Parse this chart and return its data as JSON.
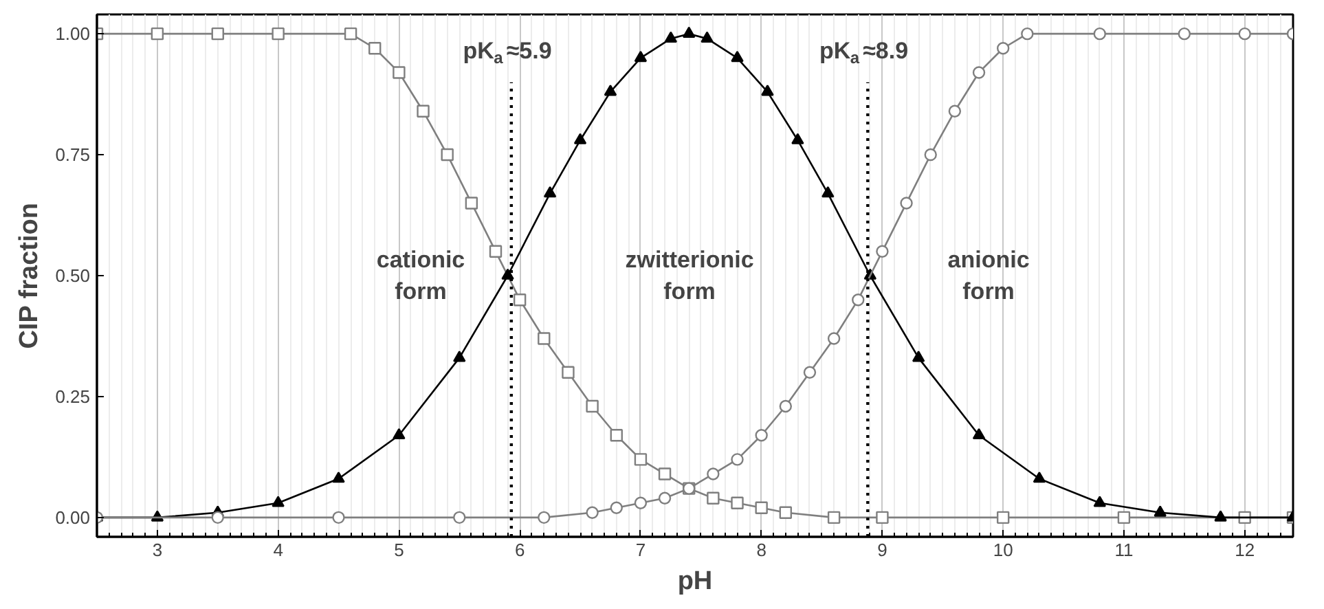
{
  "chart_data": {
    "type": "line",
    "xlabel": "pH",
    "ylabel": "CIP fraction",
    "xlim": [
      2.5,
      12.4
    ],
    "ylim": [
      -0.04,
      1.04
    ],
    "xticks": [
      3,
      4,
      5,
      6,
      7,
      8,
      9,
      10,
      11,
      12
    ],
    "yticks": [
      {
        "value": 0,
        "label": "0.00"
      },
      {
        "value": 0.25,
        "label": "0.25"
      },
      {
        "value": 0.5,
        "label": "0.50"
      },
      {
        "value": 0.75,
        "label": "0.75"
      },
      {
        "value": 1,
        "label": "1.00"
      }
    ],
    "grid": "x",
    "line_style": "solid",
    "series": [
      {
        "color": "#7f7f7f",
        "marker": "square",
        "x": [
          2.5,
          3,
          3.5,
          4,
          4.6,
          4.8,
          5.0,
          5.2,
          5.4,
          5.6,
          5.8,
          6.0,
          6.2,
          6.4,
          6.6,
          6.8,
          7.0,
          7.2,
          7.4,
          7.6,
          7.8,
          8.0,
          8.2,
          8.6,
          9,
          10,
          11,
          12,
          12.4
        ],
        "values": [
          1,
          1,
          1,
          1,
          1,
          0.97,
          0.92,
          0.84,
          0.75,
          0.65,
          0.55,
          0.45,
          0.37,
          0.3,
          0.23,
          0.17,
          0.12,
          0.09,
          0.06,
          0.04,
          0.03,
          0.02,
          0.01,
          0,
          0,
          0,
          0,
          0,
          0
        ]
      },
      {
        "color": "#000000",
        "marker": "triangle",
        "x": [
          2.5,
          3.0,
          3.5,
          4.0,
          4.5,
          5.0,
          5.5,
          5.9,
          6.25,
          6.5,
          6.75,
          7.0,
          7.25,
          7.4,
          7.55,
          7.8,
          8.05,
          8.3,
          8.55,
          8.9,
          9.3,
          9.8,
          10.3,
          10.8,
          11.3,
          11.8,
          12.4
        ],
        "values": [
          0,
          0,
          0.01,
          0.03,
          0.08,
          0.17,
          0.33,
          0.5,
          0.67,
          0.78,
          0.88,
          0.95,
          0.99,
          1,
          0.99,
          0.95,
          0.88,
          0.78,
          0.67,
          0.5,
          0.33,
          0.17,
          0.08,
          0.03,
          0.01,
          0,
          0
        ]
      },
      {
        "color": "#7f7f7f",
        "marker": "circle",
        "x": [
          2.5,
          3.5,
          4.5,
          5.5,
          6.2,
          6.6,
          6.8,
          7.0,
          7.2,
          7.4,
          7.6,
          7.8,
          8.0,
          8.2,
          8.4,
          8.6,
          8.8,
          9.0,
          9.2,
          9.4,
          9.6,
          9.8,
          10.0,
          10.2,
          10.8,
          11.5,
          12,
          12.4
        ],
        "values": [
          0,
          0,
          0,
          0,
          0,
          0.01,
          0.02,
          0.03,
          0.04,
          0.06,
          0.09,
          0.12,
          0.17,
          0.23,
          0.3,
          0.37,
          0.45,
          0.55,
          0.65,
          0.75,
          0.84,
          0.92,
          0.97,
          1,
          1,
          1,
          1,
          1
        ]
      }
    ],
    "ref_lines": [
      {
        "axis": "x",
        "value": 5.93,
        "line_style": "dotted",
        "color": "#000000",
        "label": "pK$_{a}$≈5.9"
      },
      {
        "axis": "x",
        "value": 8.88,
        "line_style": "dotted",
        "color": "#000000",
        "label": "pK$_{a}$≈8.9"
      }
    ],
    "annotations": [
      "cationic\nform",
      "zwitterionic\nform",
      "anionic\nform"
    ]
  }
}
